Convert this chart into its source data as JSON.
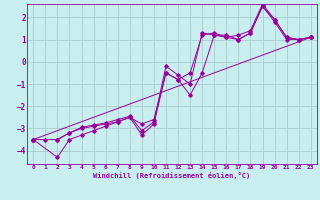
{
  "xlabel": "Windchill (Refroidissement éolien,°C)",
  "bg_color": "#c8eef0",
  "line_color": "#990099",
  "grid_color": "#aacccc",
  "xlim": [
    -0.5,
    23.5
  ],
  "ylim": [
    -4.6,
    2.6
  ],
  "yticks": [
    -4,
    -3,
    -2,
    -1,
    0,
    1,
    2
  ],
  "xticks": [
    0,
    1,
    2,
    3,
    4,
    5,
    6,
    7,
    8,
    9,
    10,
    11,
    12,
    13,
    14,
    15,
    16,
    17,
    18,
    19,
    20,
    21,
    22,
    23
  ],
  "lines": [
    {
      "x": [
        0,
        1,
        2,
        3,
        4,
        5,
        6,
        7,
        8,
        9,
        10,
        11,
        12,
        13,
        14,
        15,
        16,
        17,
        18,
        19,
        20,
        21,
        22,
        23
      ],
      "y": [
        -3.5,
        -3.5,
        -3.5,
        -3.2,
        -3.0,
        -2.9,
        -2.8,
        -2.7,
        -2.5,
        -3.3,
        -2.8,
        -0.5,
        -0.8,
        -1.5,
        -0.5,
        1.2,
        1.2,
        1.0,
        1.3,
        2.5,
        1.9,
        1.1,
        1.0,
        1.1
      ]
    },
    {
      "x": [
        0,
        2,
        3,
        4,
        5,
        6,
        7,
        8,
        9,
        10,
        11,
        12,
        13,
        14,
        15,
        16,
        17,
        18,
        19,
        20,
        21,
        22,
        23
      ],
      "y": [
        -3.5,
        -4.3,
        -3.5,
        -3.3,
        -3.1,
        -2.9,
        -2.7,
        -2.5,
        -2.8,
        -2.6,
        -0.5,
        -0.8,
        -0.5,
        1.2,
        1.3,
        1.1,
        1.0,
        1.3,
        2.5,
        1.8,
        1.0,
        1.0,
        1.1
      ]
    },
    {
      "x": [
        0,
        2,
        3,
        4,
        5,
        6,
        7,
        8,
        9,
        10,
        11,
        12,
        13,
        14,
        15,
        16,
        17,
        18,
        19,
        20,
        21,
        22,
        23
      ],
      "y": [
        -3.5,
        -3.5,
        -3.2,
        -2.95,
        -2.85,
        -2.75,
        -2.6,
        -2.45,
        -3.1,
        -2.7,
        -0.2,
        -0.6,
        -1.0,
        1.3,
        1.2,
        1.1,
        1.2,
        1.4,
        2.6,
        1.9,
        1.1,
        1.0,
        1.1
      ]
    },
    {
      "x": [
        0,
        23
      ],
      "y": [
        -3.5,
        1.1
      ]
    }
  ]
}
